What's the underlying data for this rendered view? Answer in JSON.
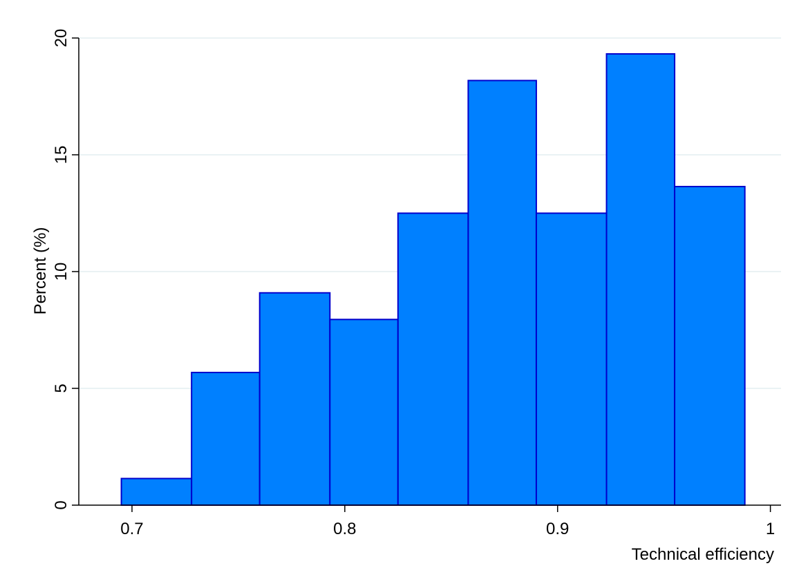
{
  "chart_data": {
    "type": "bar",
    "title": "",
    "xlabel": "Technical efficiency",
    "ylabel": "Percent (%)",
    "xlim": [
      0.675,
      1.005
    ],
    "ylim": [
      0,
      20
    ],
    "x_ticks": [
      0.7,
      0.8,
      0.9,
      1
    ],
    "x_tick_labels": [
      "0.7",
      "0.8",
      "0.9",
      "1"
    ],
    "y_ticks": [
      0,
      5,
      10,
      15,
      20
    ],
    "y_tick_labels": [
      "0",
      "5",
      "10",
      "15",
      "20"
    ],
    "grid": true,
    "bins": [
      {
        "x0": 0.695,
        "x1": 0.728,
        "value": 1.14
      },
      {
        "x0": 0.728,
        "x1": 0.76,
        "value": 5.68
      },
      {
        "x0": 0.76,
        "x1": 0.793,
        "value": 9.09
      },
      {
        "x0": 0.793,
        "x1": 0.825,
        "value": 7.95
      },
      {
        "x0": 0.825,
        "x1": 0.858,
        "value": 12.5
      },
      {
        "x0": 0.858,
        "x1": 0.89,
        "value": 18.18
      },
      {
        "x0": 0.89,
        "x1": 0.923,
        "value": 12.5
      },
      {
        "x0": 0.923,
        "x1": 0.955,
        "value": 19.32
      },
      {
        "x0": 0.955,
        "x1": 0.988,
        "value": 13.64
      }
    ],
    "colors": {
      "bar_fill": "#0080ff",
      "bar_stroke": "#0000cc",
      "grid": "#e4eef0",
      "axis": "#000000"
    }
  }
}
